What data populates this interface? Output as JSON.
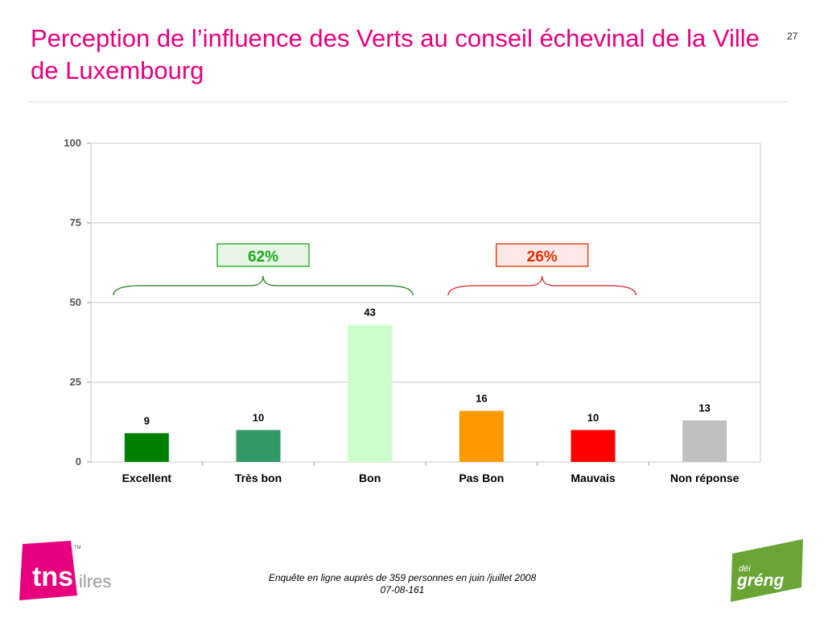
{
  "slide": {
    "title": "Perception de l’influence des Verts au conseil échevinal de la Ville de Luxembourg",
    "page_number": "27",
    "footer_line1": "Enquête en ligne auprès de 359 personnes en juin /juillet 2008",
    "footer_line2": "07-08-161"
  },
  "logos": {
    "tns_text": "tns",
    "tns_suffix": "ilres",
    "tns_tm": "TM",
    "greng_small": "déi",
    "greng_big": "gréng",
    "tns_color": "#e6007e",
    "greng_color": "#6aa434"
  },
  "chart_data": {
    "type": "bar",
    "categories": [
      "Excellent",
      "Très bon",
      "Bon",
      "Pas Bon",
      "Mauvais",
      "Non réponse"
    ],
    "values": [
      9,
      10,
      43,
      16,
      10,
      13
    ],
    "colors": [
      "#008000",
      "#339966",
      "#ccffcc",
      "#ff9900",
      "#ff0000",
      "#c0c0c0"
    ],
    "ylim": [
      0,
      100
    ],
    "yticks": [
      0,
      25,
      50,
      75,
      100
    ],
    "grid": true,
    "legend": "none",
    "data_labels": true,
    "annotations": [
      {
        "text": "62%",
        "span_categories": [
          "Excellent",
          "Très bon",
          "Bon"
        ],
        "color": "#1aa81a",
        "fill": "#e6f5e6",
        "brace_color": "#1a7a1a"
      },
      {
        "text": "26%",
        "span_categories": [
          "Pas Bon",
          "Mauvais"
        ],
        "color": "#e03000",
        "fill": "#fde8e8",
        "brace_color": "#d02020"
      }
    ]
  }
}
